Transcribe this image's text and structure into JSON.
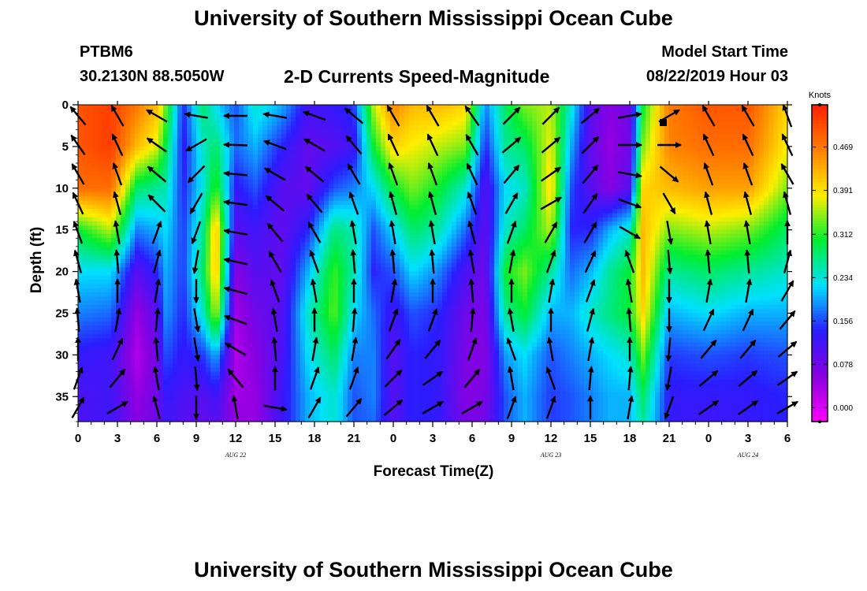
{
  "page": {
    "title": "University of Southern Mississippi Ocean Cube",
    "footer_title": "University of Southern Mississippi Ocean Cube",
    "station_id": "PTBM6",
    "station_location": "30.2130N 88.5050W",
    "model_start_label": "Model Start Time",
    "model_start_value": "08/22/2019 Hour 03"
  },
  "chart_data": {
    "type": "heatmap",
    "title": "2-D Currents Speed-Magnitude",
    "xlabel": "Forecast Time(Z)",
    "ylabel": "Depth (ft)",
    "x_ticks": [
      "0",
      "3",
      "6",
      "9",
      "12",
      "15",
      "18",
      "21",
      "0",
      "3",
      "6",
      "9",
      "12",
      "15",
      "18",
      "21",
      "0",
      "3",
      "6"
    ],
    "date_labels": [
      {
        "text": "AUG  22",
        "tick_index": 4
      },
      {
        "text": "AUG  23",
        "tick_index": 12
      },
      {
        "text": "AUG  24",
        "tick_index": 17
      }
    ],
    "y_ticks": [
      "0",
      "5",
      "10",
      "15",
      "20",
      "25",
      "30",
      "35"
    ],
    "y_tick_values": [
      0,
      5,
      10,
      15,
      20,
      25,
      30,
      35
    ],
    "ylim": [
      0,
      38
    ],
    "y_inverted": true,
    "xlim_hours": [
      0,
      54
    ],
    "colorbar": {
      "unit": "Knots",
      "tick_labels": [
        "0.469",
        "0.391",
        "0.312",
        "0.234",
        "0.156",
        "0.078",
        "0.000"
      ],
      "tick_values": [
        0.469,
        0.391,
        0.312,
        0.234,
        0.156,
        0.078,
        0.0
      ],
      "range": [
        -0.025,
        0.545
      ],
      "colors": [
        "#ff00ff",
        "#8a00e0",
        "#2a1cff",
        "#00e0ff",
        "#00ee30",
        "#ffee00",
        "#ff8000",
        "#ff2000"
      ]
    },
    "speed_surface": {
      "depth_rows_ft": [
        0,
        5,
        10,
        15,
        20,
        25,
        30,
        35,
        38
      ],
      "columns": [
        {
          "hour": 0,
          "speeds": [
            0.5,
            0.5,
            0.48,
            0.3,
            0.22,
            0.18,
            0.13,
            0.11,
            0.11
          ]
        },
        {
          "hour": 2.5,
          "speeds": [
            0.52,
            0.52,
            0.48,
            0.36,
            0.22,
            0.17,
            0.12,
            0.12,
            0.12
          ]
        },
        {
          "hour": 4.5,
          "speeds": [
            0.47,
            0.42,
            0.28,
            0.18,
            0.1,
            0.05,
            0.03,
            0.05,
            0.06
          ]
        },
        {
          "hour": 6,
          "speeds": [
            0.42,
            0.37,
            0.26,
            0.2,
            0.14,
            0.1,
            0.08,
            0.08,
            0.08
          ]
        },
        {
          "hour": 6.7,
          "speeds": [
            0.33,
            0.29,
            0.25,
            0.22,
            0.2,
            0.19,
            0.16,
            0.13,
            0.12
          ]
        },
        {
          "hour": 8,
          "speeds": [
            0.14,
            0.13,
            0.14,
            0.15,
            0.15,
            0.14,
            0.13,
            0.11,
            0.1
          ]
        },
        {
          "hour": 9.5,
          "speeds": [
            0.28,
            0.24,
            0.23,
            0.26,
            0.28,
            0.24,
            0.15,
            0.1,
            0.09
          ]
        },
        {
          "hour": 10.5,
          "speeds": [
            0.22,
            0.28,
            0.32,
            0.42,
            0.42,
            0.36,
            0.2,
            0.12,
            0.1
          ]
        },
        {
          "hour": 12,
          "speeds": [
            0.16,
            0.17,
            0.13,
            0.1,
            0.06,
            0.04,
            0.03,
            0.04,
            0.05
          ]
        },
        {
          "hour": 13.5,
          "speeds": [
            0.24,
            0.2,
            0.16,
            0.12,
            0.1,
            0.08,
            0.06,
            0.05,
            0.05
          ]
        },
        {
          "hour": 15.5,
          "speeds": [
            0.2,
            0.14,
            0.1,
            0.09,
            0.09,
            0.1,
            0.11,
            0.12,
            0.12
          ]
        },
        {
          "hour": 17.5,
          "speeds": [
            0.12,
            0.09,
            0.09,
            0.14,
            0.2,
            0.24,
            0.22,
            0.2,
            0.2
          ]
        },
        {
          "hour": 19.5,
          "speeds": [
            0.13,
            0.1,
            0.16,
            0.27,
            0.32,
            0.33,
            0.28,
            0.24,
            0.24
          ]
        },
        {
          "hour": 21,
          "speeds": [
            0.15,
            0.12,
            0.18,
            0.25,
            0.25,
            0.22,
            0.18,
            0.16,
            0.16
          ]
        },
        {
          "hour": 22.5,
          "speeds": [
            0.36,
            0.3,
            0.22,
            0.16,
            0.14,
            0.17,
            0.18,
            0.18,
            0.17
          ]
        },
        {
          "hour": 24,
          "speeds": [
            0.46,
            0.4,
            0.3,
            0.22,
            0.16,
            0.12,
            0.1,
            0.1,
            0.1
          ]
        },
        {
          "hour": 25.5,
          "speeds": [
            0.42,
            0.38,
            0.34,
            0.28,
            0.22,
            0.16,
            0.14,
            0.14,
            0.14
          ]
        },
        {
          "hour": 27.5,
          "speeds": [
            0.42,
            0.36,
            0.3,
            0.25,
            0.18,
            0.14,
            0.13,
            0.13,
            0.13
          ]
        },
        {
          "hour": 29.5,
          "speeds": [
            0.4,
            0.34,
            0.24,
            0.17,
            0.11,
            0.08,
            0.07,
            0.06,
            0.07
          ]
        },
        {
          "hour": 31,
          "speeds": [
            0.18,
            0.14,
            0.1,
            0.09,
            0.08,
            0.07,
            0.06,
            0.07,
            0.08
          ]
        },
        {
          "hour": 32.5,
          "speeds": [
            0.28,
            0.26,
            0.22,
            0.24,
            0.3,
            0.26,
            0.19,
            0.16,
            0.16
          ]
        },
        {
          "hour": 34,
          "speeds": [
            0.34,
            0.28,
            0.24,
            0.28,
            0.34,
            0.3,
            0.22,
            0.2,
            0.2
          ]
        },
        {
          "hour": 36,
          "speeds": [
            0.36,
            0.38,
            0.4,
            0.36,
            0.26,
            0.2,
            0.16,
            0.15,
            0.15
          ]
        },
        {
          "hour": 37.5,
          "speeds": [
            0.24,
            0.2,
            0.16,
            0.14,
            0.17,
            0.2,
            0.18,
            0.16,
            0.16
          ]
        },
        {
          "hour": 39,
          "speeds": [
            0.1,
            0.09,
            0.1,
            0.14,
            0.2,
            0.24,
            0.2,
            0.18,
            0.18
          ]
        },
        {
          "hour": 40.5,
          "speeds": [
            0.06,
            0.05,
            0.06,
            0.2,
            0.26,
            0.27,
            0.22,
            0.2,
            0.2
          ]
        },
        {
          "hour": 42,
          "speeds": [
            0.08,
            0.08,
            0.1,
            0.24,
            0.3,
            0.3,
            0.24,
            0.2,
            0.2
          ]
        },
        {
          "hour": 43,
          "speeds": [
            0.3,
            0.34,
            0.4,
            0.42,
            0.42,
            0.4,
            0.34,
            0.28,
            0.26
          ]
        },
        {
          "hour": 45,
          "speeds": [
            0.47,
            0.46,
            0.42,
            0.34,
            0.26,
            0.2,
            0.15,
            0.13,
            0.13
          ]
        },
        {
          "hour": 48,
          "speeds": [
            0.5,
            0.48,
            0.44,
            0.36,
            0.28,
            0.22,
            0.16,
            0.13,
            0.12
          ]
        },
        {
          "hour": 51,
          "speeds": [
            0.5,
            0.48,
            0.44,
            0.34,
            0.26,
            0.2,
            0.15,
            0.13,
            0.13
          ]
        },
        {
          "hour": 54,
          "speeds": [
            0.4,
            0.38,
            0.34,
            0.28,
            0.24,
            0.2,
            0.16,
            0.14,
            0.14
          ]
        }
      ]
    },
    "vector_columns_hours": [
      0,
      3,
      6,
      9,
      12,
      15,
      18,
      21,
      24,
      27,
      30,
      33,
      36,
      39,
      42,
      45,
      48,
      51,
      54
    ],
    "vector_rows_ft": [
      0,
      3.5,
      7,
      10.5,
      14,
      17.5,
      21,
      24.5,
      28,
      31.5,
      35
    ],
    "vector_directions_deg": [
      [
        320,
        325,
        330,
        335,
        340,
        345,
        350,
        355,
        360,
        20,
        30
      ],
      [
        330,
        335,
        340,
        345,
        350,
        355,
        360,
        10,
        25,
        40,
        60
      ],
      [
        300,
        305,
        310,
        315,
        20,
        15,
        10,
        5,
        355,
        350,
        345
      ],
      [
        280,
        240,
        225,
        210,
        200,
        190,
        180,
        170,
        170,
        175,
        180
      ],
      [
        270,
        272,
        275,
        278,
        280,
        282,
        285,
        290,
        300,
        320,
        350
      ],
      [
        280,
        290,
        300,
        310,
        320,
        330,
        340,
        350,
        355,
        360,
        100
      ],
      [
        290,
        300,
        310,
        320,
        330,
        340,
        350,
        360,
        10,
        20,
        30
      ],
      [
        310,
        320,
        330,
        340,
        350,
        355,
        360,
        5,
        10,
        20,
        40
      ],
      [
        330,
        335,
        340,
        345,
        350,
        355,
        10,
        20,
        35,
        45,
        50
      ],
      [
        330,
        335,
        340,
        345,
        350,
        355,
        360,
        20,
        40,
        55,
        60
      ],
      [
        325,
        330,
        335,
        340,
        345,
        350,
        355,
        5,
        20,
        40,
        60
      ],
      [
        45,
        50,
        40,
        30,
        20,
        10,
        360,
        350,
        340,
        350,
        20
      ],
      [
        45,
        50,
        55,
        60,
        30,
        20,
        10,
        360,
        350,
        340,
        20
      ],
      [
        50,
        45,
        40,
        35,
        30,
        25,
        20,
        15,
        10,
        5,
        0
      ],
      [
        80,
        90,
        100,
        110,
        120,
        340,
        350,
        355,
        0,
        5,
        10
      ],
      [
        60,
        90,
        130,
        150,
        170,
        175,
        180,
        180,
        185,
        190,
        200
      ],
      [
        330,
        335,
        340,
        345,
        350,
        355,
        10,
        25,
        40,
        50,
        55
      ],
      [
        330,
        335,
        340,
        345,
        350,
        355,
        10,
        25,
        40,
        50,
        55
      ],
      [
        340,
        335,
        330,
        345,
        360,
        15,
        30,
        40,
        50,
        55,
        60
      ]
    ]
  }
}
